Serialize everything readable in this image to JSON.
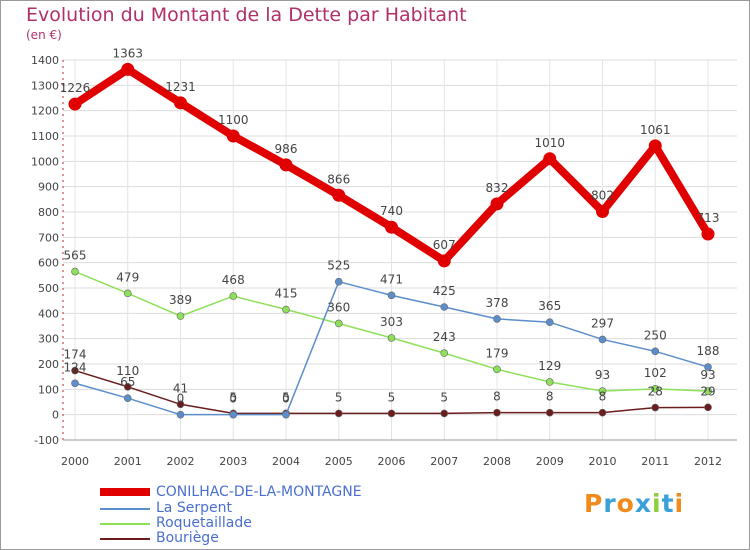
{
  "chart_data": {
    "type": "line",
    "title": "Evolution du Montant de la Dette par Habitant",
    "subtitle": "(en €)",
    "x": [
      "2000",
      "2001",
      "2002",
      "2003",
      "2004",
      "2005",
      "2006",
      "2007",
      "2008",
      "2009",
      "2010",
      "2011",
      "2012"
    ],
    "ylim": [
      -100,
      1400
    ],
    "yticks": [
      -100,
      0,
      100,
      200,
      300,
      400,
      500,
      600,
      700,
      800,
      900,
      1000,
      1100,
      1200,
      1300,
      1400
    ],
    "grid": true,
    "series": [
      {
        "name": "CONILHAC-DE-LA-MONTAGNE",
        "color": "#e00000",
        "values": [
          1226,
          1363,
          1231,
          1100,
          986,
          866,
          740,
          607,
          832,
          1010,
          802,
          1061,
          713
        ]
      },
      {
        "name": "La Serpent",
        "color": "#5b8ecb",
        "values": [
          124,
          65,
          0,
          0,
          0,
          525,
          471,
          425,
          378,
          365,
          297,
          250,
          188
        ]
      },
      {
        "name": "Roquetaillade",
        "color": "#8ee05a",
        "values": [
          565,
          479,
          389,
          468,
          415,
          360,
          303,
          243,
          179,
          129,
          93,
          102,
          93
        ]
      },
      {
        "name": "Bouriège",
        "color": "#6b1c1c",
        "values": [
          174,
          110,
          41,
          5,
          5,
          5,
          5,
          5,
          8,
          8,
          8,
          28,
          29
        ]
      }
    ],
    "labels": [
      [
        "1226",
        "1363",
        "1231",
        "1100",
        "986",
        "866",
        "740",
        "607",
        "832",
        "1010",
        "802",
        "1061",
        "713"
      ],
      [
        "124",
        "65",
        "0",
        "0",
        "0",
        "525",
        "471",
        "425",
        "378",
        "365",
        "297",
        "250",
        "188"
      ],
      [
        "565",
        "479",
        "389",
        "468",
        "415",
        "360",
        "303",
        "243",
        "179",
        "129",
        "93",
        "102",
        "93"
      ],
      [
        "174",
        "110",
        "41",
        "5",
        "5",
        "5",
        "5",
        "5",
        "8",
        "8",
        "8",
        "28",
        "29"
      ]
    ],
    "legend": "bottom-left"
  },
  "logo": {
    "text": "Proxiti",
    "colors": [
      "#f08a1a",
      "#3aa0d8",
      "#f08a1a",
      "#3aa0d8",
      "#8ccf3a",
      "#3aa0d8",
      "#f08a1a"
    ]
  }
}
